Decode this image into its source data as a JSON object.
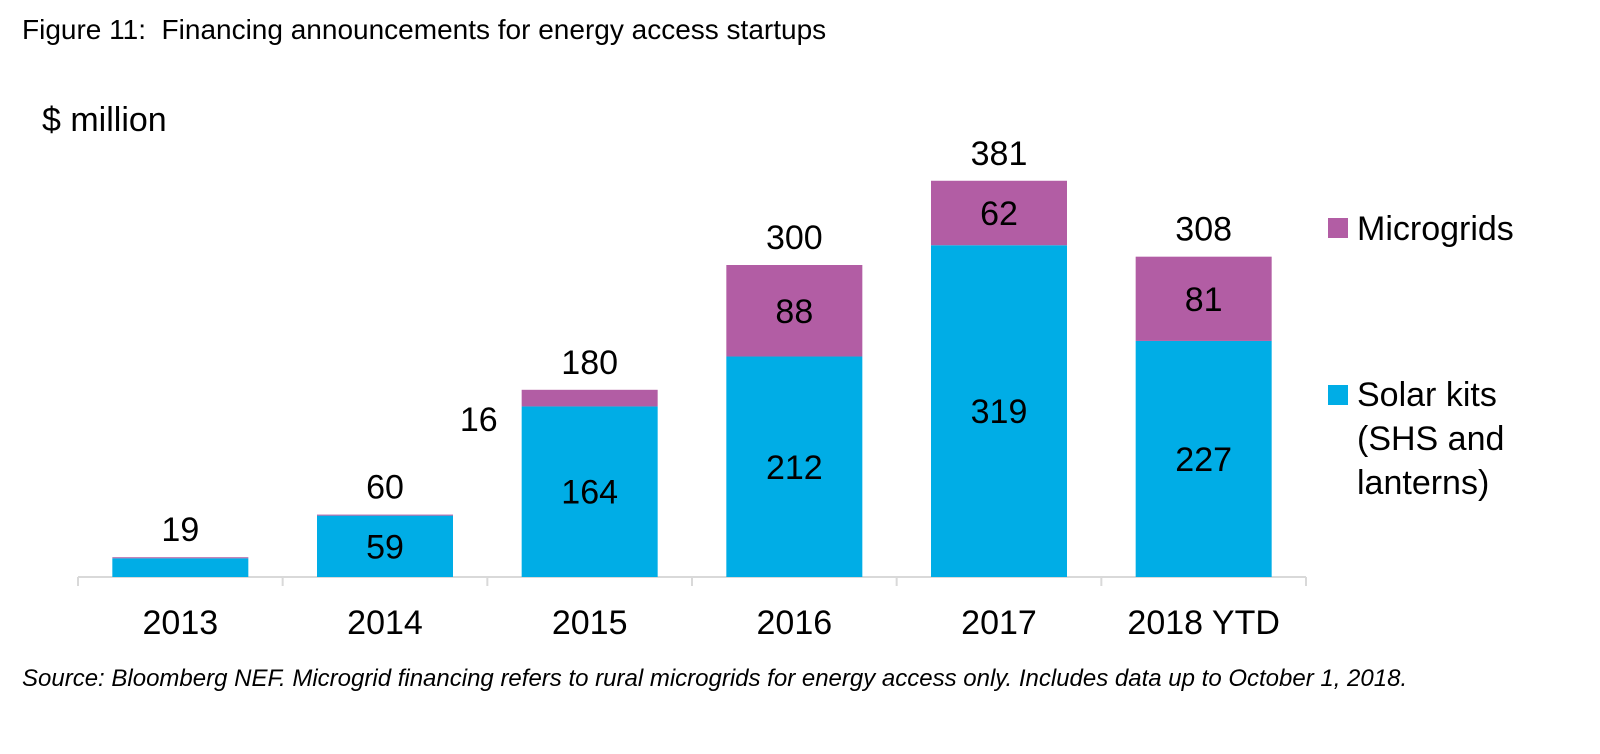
{
  "figure_title": "Figure 11:  Financing announcements for energy access startups",
  "source_note": "Source: Bloomberg NEF. Microgrid financing refers to rural microgrids for energy access only. Includes data up to October 1, 2018.",
  "colors": {
    "solar": "#00ADE6",
    "microgrids": "#B25DA4",
    "axis": "#D9D9D9"
  },
  "chart_data": {
    "type": "bar",
    "stacked": true,
    "ylabel": "$ million",
    "categories": [
      "2013",
      "2014",
      "2015",
      "2016",
      "2017",
      "2018 YTD"
    ],
    "series": [
      {
        "name": "Solar kits (SHS and lanterns)",
        "values": [
          18,
          59,
          164,
          212,
          319,
          227
        ],
        "labels": [
          "",
          "59",
          "164",
          "212",
          "319",
          "227"
        ]
      },
      {
        "name": "Microgrids",
        "values": [
          1,
          1,
          16,
          88,
          62,
          81
        ],
        "labels": [
          "",
          "",
          "16",
          "88",
          "62",
          "81"
        ]
      }
    ],
    "totals": [
      19,
      60,
      180,
      300,
      381,
      308
    ],
    "legend": [
      "Microgrids",
      "Solar kits (SHS and lanterns)"
    ],
    "legend_position": "right",
    "grid": false
  }
}
